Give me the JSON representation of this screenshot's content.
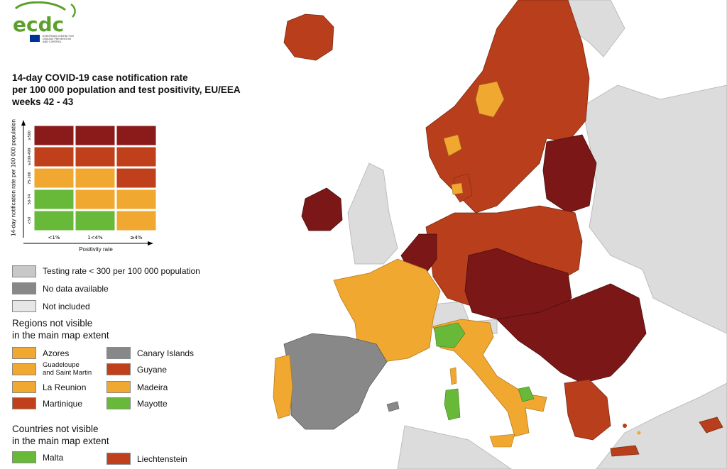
{
  "logo": {
    "wordmark": "ecdc",
    "line1": "EUROPEAN CENTRE FOR",
    "line2": "DISEASE PREVENTION",
    "line3": "AND CONTROL"
  },
  "title": {
    "line1": "14-day COVID-19 case notification rate",
    "line2": "per 100 000 population and test positivity, EU/EEA",
    "line3": "weeks 42 - 43"
  },
  "matrix": {
    "y_axis_label": "14-day notification rate per 100 000 population",
    "x_axis_label": "Positivity rate",
    "row_labels": [
      "≥500",
      "≥200-499",
      "75-200",
      "50-74",
      "<50"
    ],
    "col_labels": [
      "<1%",
      "1<4%",
      "≥4%"
    ],
    "cells": [
      [
        "#8b1a1a",
        "#8b1a1a",
        "#8b1a1a"
      ],
      [
        "#c0401b",
        "#c0401b",
        "#c0401b"
      ],
      [
        "#f0a830",
        "#f0a830",
        "#c0401b"
      ],
      [
        "#68b93a",
        "#f0a830",
        "#f0a830"
      ],
      [
        "#68b93a",
        "#68b93a",
        "#f0a830"
      ]
    ]
  },
  "legend": {
    "testing_rate": {
      "label": "Testing rate < 300 per 100 000 population",
      "color": "#c8c8c8"
    },
    "no_data": {
      "label": "No data available",
      "color": "#888888"
    },
    "not_included": {
      "label": "Not included",
      "color": "#e6e6e6"
    }
  },
  "regions_header": {
    "line1": "Regions not visible",
    "line2": "in the main map extent"
  },
  "regions": [
    {
      "label": "Azores",
      "color": "#f0a830"
    },
    {
      "label": "Canary Islands",
      "color": "#888888"
    },
    {
      "label_line1": "Guadeloupe",
      "label_line2": "and Saint Martin",
      "color": "#f0a830"
    },
    {
      "label": "Guyane",
      "color": "#c0401b"
    },
    {
      "label": "La Reunion",
      "color": "#f0a830"
    },
    {
      "label": "Madeira",
      "color": "#f0a830"
    },
    {
      "label": "Martinique",
      "color": "#c0401b"
    },
    {
      "label": "Mayotte",
      "color": "#68b93a"
    }
  ],
  "countries_header": {
    "line1": "Countries not visible",
    "line2": "in the main map extent"
  },
  "countries": [
    {
      "label": "Malta",
      "color": "#68b93a"
    },
    {
      "label": "Liechtenstein",
      "color": "#c0401b"
    }
  ],
  "palette": {
    "sea": "#ffffff",
    "not_included": "#dcdcdc",
    "dark_red": "#7c1717",
    "red": "#b83e1c",
    "orange": "#f0a830",
    "green": "#68b93a",
    "grey_no_data": "#888888",
    "brand_green": "#5aa02c",
    "eu_blue": "#003399"
  }
}
